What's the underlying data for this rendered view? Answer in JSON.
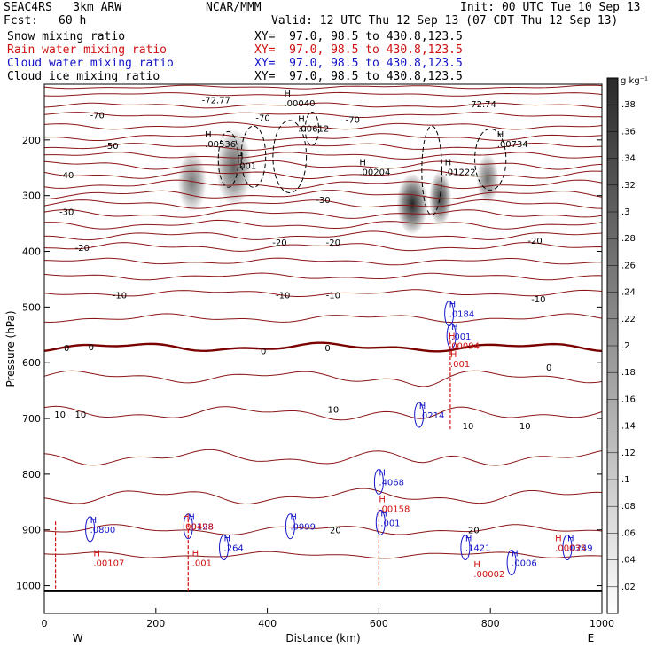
{
  "header": {
    "model": "SEAC4RS   3km ARW",
    "org": "NCAR/MMM",
    "init": "Init: 00 UTC Tue 10 Sep 13",
    "fcst_label": "Fcst:",
    "fcst_value": "60 h",
    "valid": "Valid: 12 UTC Thu 12 Sep 13 (07 CDT Thu 12 Sep 13)",
    "fields": [
      {
        "name": "Snow mixing ratio",
        "xy": "XY=  97.0, 98.5 to 430.8,123.5",
        "color": "#000000"
      },
      {
        "name": "Rain water mixing ratio",
        "xy": "XY=  97.0, 98.5 to 430.8,123.5",
        "color": "#d01010"
      },
      {
        "name": "Cloud water mixing ratio",
        "xy": "XY=  97.0, 98.5 to 430.8,123.5",
        "color": "#1515c8"
      },
      {
        "name": "Cloud ice mixing ratio",
        "xy": "XY=  97.0, 98.5 to 430.8,123.5",
        "color": "#000000"
      }
    ]
  },
  "chart_data": {
    "type": "cross-section",
    "xlabel": "Distance (km)",
    "ylabel": "Pressure (hPa)",
    "xlim": [
      0,
      1000
    ],
    "ylim": [
      1050,
      100
    ],
    "x_ticks": [
      0,
      200,
      400,
      600,
      800,
      1000
    ],
    "y_ticks": [
      1000,
      900,
      800,
      700,
      600,
      500,
      400,
      300,
      200
    ],
    "x_end_labels": {
      "left": "W",
      "right": "E"
    },
    "colorbar": {
      "unit": "g kg⁻¹",
      "ticks": [
        ".02",
        ".04",
        ".06",
        ".08",
        ".1",
        ".12",
        ".14",
        ".16",
        ".18",
        ".2",
        ".22",
        ".24",
        ".26",
        ".28",
        ".3",
        ".32",
        ".34",
        ".36",
        ".38"
      ],
      "ticks_dark_from": 14
    },
    "temperature_contours": {
      "color": "#8b1515",
      "zero_color": "#7a0000",
      "labels": [
        {
          "t": "-72.77",
          "x": 308,
          "p": 128
        },
        {
          "t": "-72.74",
          "x": 785,
          "p": 135
        },
        {
          "t": "-70",
          "x": 95,
          "p": 155
        },
        {
          "t": "-70",
          "x": 392,
          "p": 160
        },
        {
          "t": "-70",
          "x": 553,
          "p": 163
        },
        {
          "t": "-50",
          "x": 120,
          "p": 210
        },
        {
          "t": "-40",
          "x": 40,
          "p": 262
        },
        {
          "t": "-30",
          "x": 40,
          "p": 328
        },
        {
          "t": "-30",
          "x": 500,
          "p": 307
        },
        {
          "t": "-20",
          "x": 68,
          "p": 393
        },
        {
          "t": "-20",
          "x": 422,
          "p": 383
        },
        {
          "t": "-20",
          "x": 518,
          "p": 383
        },
        {
          "t": "-20",
          "x": 880,
          "p": 380
        },
        {
          "t": "-10",
          "x": 135,
          "p": 478
        },
        {
          "t": "-10",
          "x": 428,
          "p": 478
        },
        {
          "t": "-10",
          "x": 518,
          "p": 478
        },
        {
          "t": "-10",
          "x": 886,
          "p": 485
        },
        {
          "t": "0",
          "x": 40,
          "p": 573
        },
        {
          "t": "0",
          "x": 84,
          "p": 571
        },
        {
          "t": "0",
          "x": 393,
          "p": 578
        },
        {
          "t": "0",
          "x": 508,
          "p": 573
        },
        {
          "t": "0",
          "x": 905,
          "p": 608
        },
        {
          "t": "10",
          "x": 28,
          "p": 692
        },
        {
          "t": "10",
          "x": 65,
          "p": 692
        },
        {
          "t": "10",
          "x": 518,
          "p": 683
        },
        {
          "t": "10",
          "x": 760,
          "p": 713
        },
        {
          "t": "10",
          "x": 862,
          "p": 713
        },
        {
          "t": "20",
          "x": 522,
          "p": 900
        },
        {
          "t": "20",
          "x": 770,
          "p": 900
        }
      ]
    },
    "snow_maxima": [
      {
        "label": ".00536",
        "x": 288,
        "p": 213
      },
      {
        "label": ".001",
        "x": 345,
        "p": 252
      },
      {
        "label": ".00612",
        "x": 455,
        "p": 185
      },
      {
        "label": ".00204",
        "x": 565,
        "p": 263
      },
      {
        "label": ".01222",
        "x": 718,
        "p": 263
      },
      {
        "label": ".00734",
        "x": 812,
        "p": 213
      },
      {
        "label": ".00040",
        "x": 430,
        "p": 140
      }
    ],
    "snow_shading": [
      {
        "x": 265,
        "p": 275,
        "rx": 26,
        "rp": 55,
        "q": 0.22
      },
      {
        "x": 340,
        "p": 250,
        "rx": 32,
        "rp": 70,
        "q": 0.26
      },
      {
        "x": 660,
        "p": 315,
        "rx": 28,
        "rp": 55,
        "q": 0.36
      },
      {
        "x": 710,
        "p": 305,
        "rx": 20,
        "rp": 50,
        "q": 0.32
      },
      {
        "x": 795,
        "p": 270,
        "rx": 20,
        "rp": 45,
        "q": 0.24
      }
    ],
    "cloud_water_maxima": [
      {
        "label": ".0800",
        "x": 82,
        "p": 905
      },
      {
        "label": ".0128",
        "x": 258,
        "p": 900
      },
      {
        "label": ".264",
        "x": 322,
        "p": 938
      },
      {
        "label": ".0999",
        "x": 441,
        "p": 900
      },
      {
        "label": ".4068",
        "x": 600,
        "p": 820
      },
      {
        "label": ".001",
        "x": 603,
        "p": 893
      },
      {
        "label": ".0214",
        "x": 672,
        "p": 700
      },
      {
        "label": ".0184",
        "x": 726,
        "p": 518
      },
      {
        "label": ".001",
        "x": 730,
        "p": 558
      },
      {
        "label": ".1421",
        "x": 755,
        "p": 938
      },
      {
        "label": ".0006",
        "x": 838,
        "p": 965
      },
      {
        "label": ".0249",
        "x": 938,
        "p": 938
      }
    ],
    "rain_maxima": [
      {
        "label": ".00107",
        "x": 88,
        "p": 965
      },
      {
        "label": ".00498",
        "x": 248,
        "p": 900
      },
      {
        "label": ".001",
        "x": 265,
        "p": 965
      },
      {
        "label": ".00158",
        "x": 600,
        "p": 868
      },
      {
        "label": ".00094",
        "x": 725,
        "p": 575
      },
      {
        "label": ".001",
        "x": 728,
        "p": 608
      },
      {
        "label": ".00002",
        "x": 770,
        "p": 985
      },
      {
        "label": ".00035",
        "x": 916,
        "p": 938
      }
    ]
  }
}
